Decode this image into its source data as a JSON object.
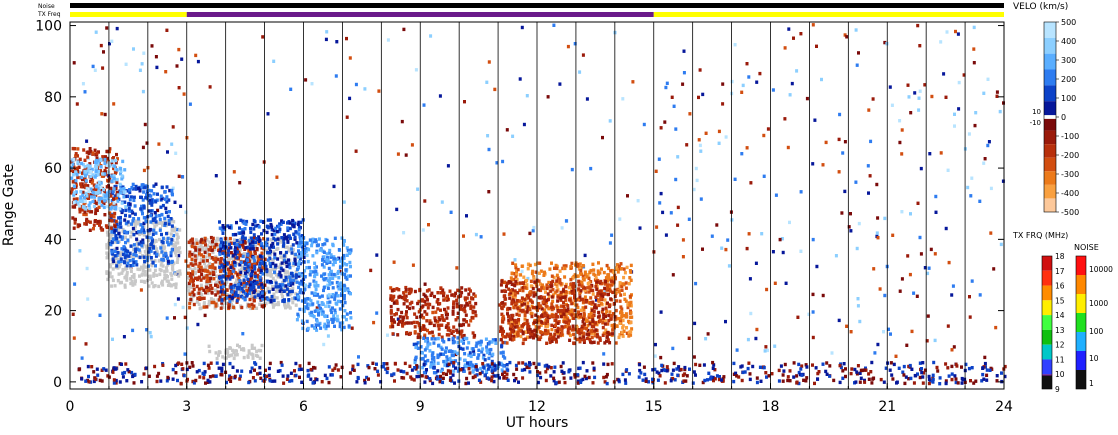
{
  "chart_data": {
    "type": "heatmap",
    "title": "",
    "xlabel": "UT hours",
    "ylabel": "Range Gate",
    "xlim": [
      0,
      24
    ],
    "ylim": [
      -2,
      101
    ],
    "x_ticks": [
      0,
      3,
      6,
      9,
      12,
      15,
      18,
      21,
      24
    ],
    "y_ticks": [
      0,
      20,
      40,
      60,
      80,
      100
    ],
    "grid": false,
    "vertical_scan_lines_ut": [
      1,
      2,
      3,
      4,
      5,
      6,
      7,
      8,
      9,
      10,
      11,
      12,
      13,
      14,
      15,
      16,
      17,
      18,
      19,
      20,
      21,
      22,
      23,
      24
    ],
    "status_bars": {
      "noise_label": "Noise",
      "tx_freq_label": "TX Freq",
      "noise_segments": [
        {
          "start": 0,
          "end": 24,
          "color": "#000000"
        }
      ],
      "tx_freq_segments": [
        {
          "start": 0,
          "end": 3,
          "color": "#ffff00"
        },
        {
          "start": 3,
          "end": 15,
          "color": "#6a1a8a"
        },
        {
          "start": 15,
          "end": 24,
          "color": "#ffff00"
        }
      ]
    },
    "velocity_colorbar": {
      "title": "VELO (km/s)",
      "range": [
        -500,
        500
      ],
      "tick_labels": [
        "500",
        "400",
        "300",
        "200",
        "100",
        "0",
        "-100",
        "-200",
        "-300",
        "-400",
        "-500"
      ],
      "zero_band_labels": [
        "10",
        "-10"
      ],
      "positive_colors": [
        "#b8e4ff",
        "#8ccfff",
        "#5aaeff",
        "#2e7cf0",
        "#0c42c8",
        "#06179a"
      ],
      "negative_colors": [
        "#7a0a0a",
        "#9a1a0a",
        "#b8300c",
        "#d24e10",
        "#ec7a1a",
        "#f9a040",
        "#fcc89a"
      ]
    },
    "txfreq_colorbar": {
      "title": "TX FRQ (MHz)",
      "tick_labels": [
        "18",
        "17",
        "16",
        "15",
        "14",
        "13",
        "12",
        "11",
        "10",
        "9"
      ],
      "colors": [
        "#d01010",
        "#ff3010",
        "#ff8c00",
        "#ffee00",
        "#40ff40",
        "#10c010",
        "#00c8c8",
        "#3040ff",
        "#6a1a8a",
        "#101010"
      ]
    },
    "noise_colorbar": {
      "title": "NOISE",
      "tick_labels": [
        "10000",
        "1000",
        "100",
        "10",
        "1"
      ],
      "colors": [
        "#ff1010",
        "#ff8800",
        "#ffee00",
        "#20e020",
        "#20b0ff",
        "#2020ff",
        "#101010"
      ]
    },
    "echo_regions": [
      {
        "name": "ground-scatter-evening",
        "x": [
          0.9,
          2.8
        ],
        "y": [
          26,
          45
        ],
        "velocity": 0,
        "ground_scatter": true
      },
      {
        "name": "blue-band-early",
        "x": [
          1.0,
          2.6
        ],
        "y": [
          32,
          55
        ],
        "velocity": 150
      },
      {
        "name": "red-band-early",
        "x": [
          0.0,
          1.2
        ],
        "y": [
          42,
          65
        ],
        "velocity": -150
      },
      {
        "name": "lightblue-early",
        "x": [
          0.0,
          1.4
        ],
        "y": [
          48,
          62
        ],
        "velocity": 350
      },
      {
        "name": "ground-scatter-3-5",
        "x": [
          3.0,
          5.8
        ],
        "y": [
          20,
          40
        ],
        "velocity": 0,
        "ground_scatter": true
      },
      {
        "name": "red-3-5",
        "x": [
          3.0,
          5.0
        ],
        "y": [
          20,
          40
        ],
        "velocity": -180
      },
      {
        "name": "navy-4-6",
        "x": [
          3.8,
          6.0
        ],
        "y": [
          22,
          45
        ],
        "velocity": 120
      },
      {
        "name": "blue-6-7",
        "x": [
          5.8,
          7.2
        ],
        "y": [
          14,
          40
        ],
        "velocity": 260
      },
      {
        "name": "red-9-10",
        "x": [
          8.2,
          10.4
        ],
        "y": [
          12,
          26
        ],
        "velocity": -150
      },
      {
        "name": "blue-9-11",
        "x": [
          8.8,
          11.2
        ],
        "y": [
          2,
          12
        ],
        "velocity": 220
      },
      {
        "name": "orange-11-14",
        "x": [
          11.3,
          14.4
        ],
        "y": [
          12,
          33
        ],
        "velocity": -320
      },
      {
        "name": "red-11-14",
        "x": [
          11.0,
          14.0
        ],
        "y": [
          10,
          28
        ],
        "velocity": -170
      },
      {
        "name": "ground-scatter-4",
        "x": [
          3.5,
          4.9
        ],
        "y": [
          6,
          10
        ],
        "velocity": 0,
        "ground_scatter": true
      },
      {
        "name": "near-range-band",
        "x": [
          0,
          24
        ],
        "y": [
          -1,
          5
        ],
        "velocity": 0,
        "mixed": true
      }
    ]
  }
}
